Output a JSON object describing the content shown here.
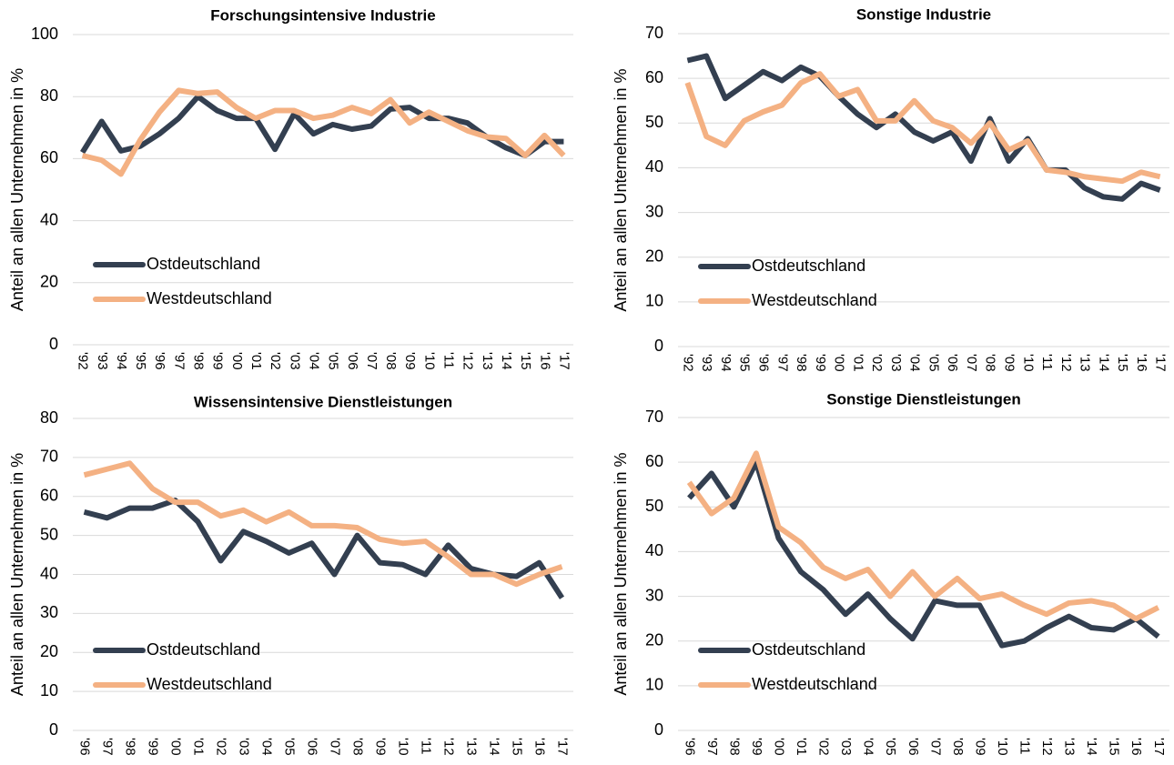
{
  "chart_data": [
    {
      "type": "line",
      "title": "Forschungsintensive Industrie",
      "y_label": "Anteil an allen Unternehmen in %",
      "categories": [
        "'92",
        "'93",
        "'94",
        "'95",
        "'96",
        "'97",
        "'98",
        "'99",
        "'00",
        "'01",
        "'02",
        "'03",
        "'04",
        "'05",
        "'06",
        "'07",
        "'08",
        "'09",
        "'10",
        "'11",
        "'12",
        "'13",
        "'14",
        "'15",
        "'16",
        "'17"
      ],
      "series": [
        {
          "name": "Ostdeutschland",
          "color": "#333f50",
          "values": [
            62,
            72,
            62.5,
            64,
            68,
            73,
            80,
            75.5,
            73,
            73,
            63,
            74.5,
            68,
            71,
            69.5,
            70.5,
            76,
            76.5,
            73,
            73,
            71.5,
            67,
            63.5,
            61,
            65.5,
            65.5
          ]
        },
        {
          "name": "Westdeutschland",
          "color": "#f4b183",
          "values": [
            61,
            59.5,
            55,
            66,
            75,
            82,
            81,
            81.5,
            76.5,
            73,
            75.5,
            75.5,
            73,
            74,
            76.5,
            74.5,
            79,
            71.5,
            75,
            72,
            69,
            67,
            66.5,
            61,
            67.5,
            61
          ]
        }
      ],
      "ylim": [
        0,
        100
      ],
      "yticks": [
        0,
        20,
        40,
        60,
        80,
        100
      ],
      "grid": true,
      "legend": "lower left"
    },
    {
      "type": "line",
      "title": "Sonstige Industrie",
      "y_label": "Anteil an allen Unternehmen in %",
      "categories": [
        "'92",
        "'93",
        "'94",
        "'95",
        "'96",
        "'97",
        "'98",
        "'99",
        "'00",
        "'01",
        "'02",
        "'03",
        "'04",
        "'05",
        "'06",
        "'07",
        "'08",
        "'09",
        "'10",
        "'11",
        "'12",
        "'13",
        "'14",
        "'15",
        "'16",
        "'17"
      ],
      "series": [
        {
          "name": "Ostdeutschland",
          "color": "#333f50",
          "values": [
            64,
            65,
            55.5,
            58.5,
            61.5,
            59.5,
            62.5,
            60.5,
            56,
            52,
            49,
            52,
            48,
            46,
            48,
            41.5,
            51,
            41.5,
            46.5,
            39.5,
            39.5,
            35.5,
            33.5,
            33,
            36.5,
            35
          ]
        },
        {
          "name": "Westdeutschland",
          "color": "#f4b183",
          "values": [
            59,
            47,
            45,
            50.5,
            52.5,
            54,
            59,
            61,
            56,
            57.5,
            50.5,
            50.5,
            55,
            50.5,
            49,
            45.5,
            50,
            44,
            46,
            39.5,
            39,
            38,
            37.5,
            37,
            39,
            38
          ]
        }
      ],
      "ylim": [
        0,
        70
      ],
      "yticks": [
        0,
        10,
        20,
        30,
        40,
        50,
        60,
        70
      ],
      "grid": true,
      "legend": "lower left"
    },
    {
      "type": "line",
      "title": "Wissensintensive Dienstleistungen",
      "y_label": "Anteil an allen Unternehmen in %",
      "categories": [
        "'96",
        "'97",
        "'98",
        "'99",
        "'00",
        "'01",
        "'02",
        "'03",
        "'04",
        "'05",
        "'06",
        "'07",
        "'08",
        "'09",
        "'10",
        "'11",
        "'12",
        "'13",
        "'14",
        "'15",
        "'16",
        "'17"
      ],
      "series": [
        {
          "name": "Ostdeutschland",
          "color": "#333f50",
          "values": [
            56,
            54.5,
            57,
            57,
            59,
            53.5,
            43.5,
            51,
            48.5,
            45.5,
            48,
            40,
            50,
            43,
            42.5,
            40,
            47.5,
            41.5,
            40,
            39.5,
            43,
            34
          ]
        },
        {
          "name": "Westdeutschland",
          "color": "#f4b183",
          "values": [
            65.5,
            67,
            68.5,
            62,
            58.5,
            58.5,
            55,
            56.5,
            53.5,
            56,
            52.5,
            52.5,
            52,
            49,
            48,
            48.5,
            44.5,
            40,
            40,
            37.5,
            40,
            42
          ]
        }
      ],
      "ylim": [
        0,
        80
      ],
      "yticks": [
        0,
        10,
        20,
        30,
        40,
        50,
        60,
        70,
        80
      ],
      "grid": true,
      "legend": "lower left"
    },
    {
      "type": "line",
      "title": "Sonstige Dienstleistungen",
      "y_label": "Anteil an allen Unternehmen in %",
      "categories": [
        "'96",
        "'97",
        "'98",
        "'99",
        "'00",
        "'01",
        "'02",
        "'03",
        "'04",
        "'05",
        "'06",
        "'07",
        "'08",
        "'09",
        "'10",
        "'11",
        "'12",
        "'13",
        "'14",
        "'15",
        "'16",
        "'17"
      ],
      "series": [
        {
          "name": "Ostdeutschland",
          "color": "#333f50",
          "values": [
            52,
            57.5,
            50,
            60,
            43,
            35.5,
            31.5,
            26,
            30.5,
            25,
            20.5,
            29,
            28,
            28,
            19,
            20,
            23,
            25.5,
            23,
            22.5,
            25,
            21
          ]
        },
        {
          "name": "Westdeutschland",
          "color": "#f4b183",
          "values": [
            55.5,
            48.5,
            52,
            62,
            45.5,
            42,
            36.5,
            34,
            36,
            30,
            35.5,
            30,
            34,
            29.5,
            30.5,
            28,
            26,
            28.5,
            29,
            28,
            25,
            27.5
          ]
        }
      ],
      "ylim": [
        0,
        70
      ],
      "yticks": [
        0,
        10,
        20,
        30,
        40,
        50,
        60,
        70
      ],
      "grid": true,
      "legend": "lower left"
    }
  ]
}
